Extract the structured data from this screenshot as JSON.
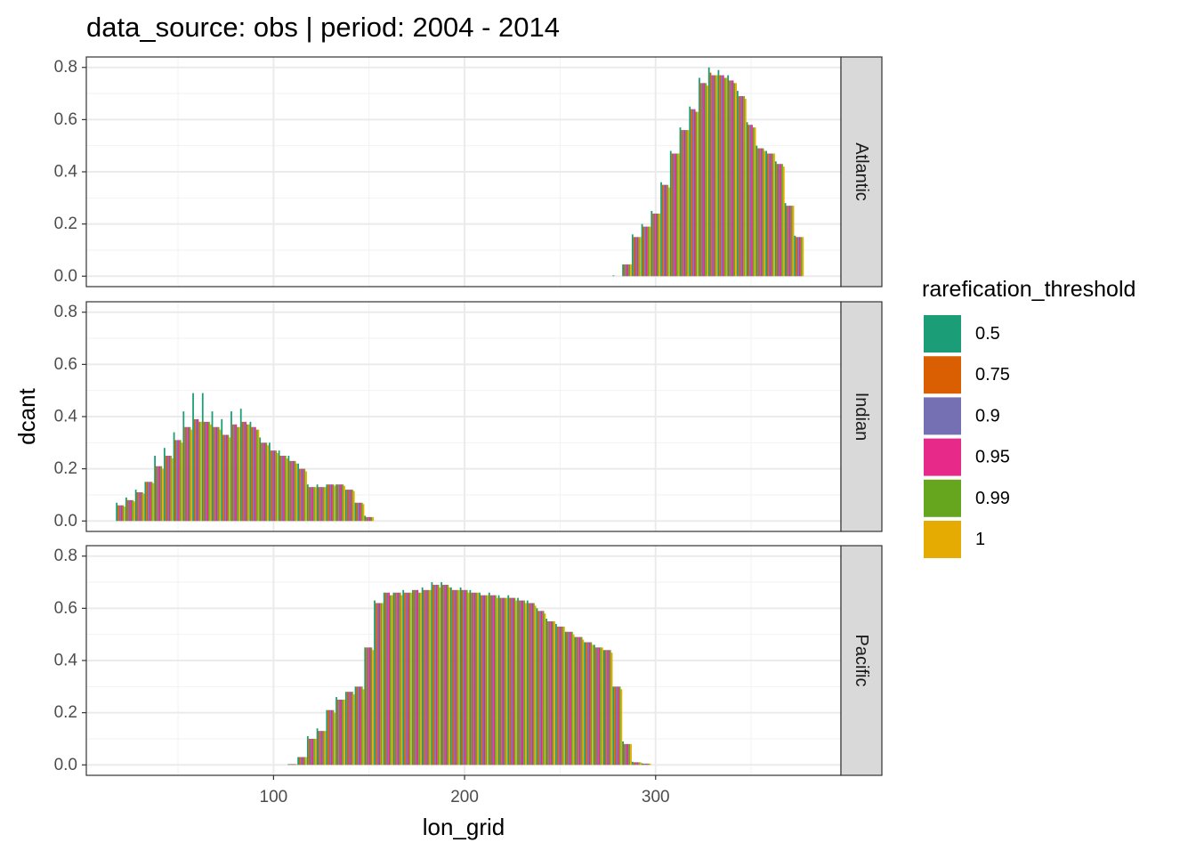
{
  "chart_data": {
    "type": "bar",
    "title": "data_source: obs | period: 2004 - 2014",
    "xlabel": "lon_grid",
    "ylabel": "dcant",
    "xlim": [
      2,
      397
    ],
    "ylim": [
      -0.04,
      0.84
    ],
    "x_ticks": [
      100,
      200,
      300
    ],
    "x_tick_labels": [
      "100",
      "200",
      "300"
    ],
    "x_minor_ticks": [
      50,
      150,
      250,
      350
    ],
    "y_ticks": [
      0.0,
      0.2,
      0.4,
      0.6,
      0.8
    ],
    "y_tick_labels": [
      "0.0",
      "0.2",
      "0.4",
      "0.6",
      "0.8"
    ],
    "grid": true,
    "legend": {
      "title": "rarefication_threshold",
      "position": "right",
      "entries": [
        {
          "label": "0.5",
          "color": "#1B9E77"
        },
        {
          "label": "0.75",
          "color": "#D95F02"
        },
        {
          "label": "0.9",
          "color": "#7570B3"
        },
        {
          "label": "0.95",
          "color": "#E7298A"
        },
        {
          "label": "0.99",
          "color": "#66A61E"
        },
        {
          "label": "1",
          "color": "#E6AB02"
        }
      ]
    },
    "bin_width": 5,
    "facets": [
      {
        "name": "Atlantic",
        "x": [
          280,
          285,
          290,
          295,
          300,
          305,
          310,
          315,
          320,
          325,
          330,
          335,
          340,
          345,
          350,
          355,
          360,
          365,
          370,
          375
        ],
        "series": [
          {
            "name": "0.5",
            "values": [
              0.003,
              0.045,
              0.16,
              0.2,
              0.25,
              0.36,
              0.48,
              0.57,
              0.65,
              0.76,
              0.8,
              0.79,
              0.77,
              0.71,
              0.59,
              0.5,
              0.48,
              0.44,
              0.28,
              0.155
            ]
          },
          {
            "name": "0.75",
            "values": [
              0.0,
              0.045,
              0.15,
              0.19,
              0.24,
              0.35,
              0.47,
              0.56,
              0.64,
              0.74,
              0.78,
              0.77,
              0.75,
              0.69,
              0.58,
              0.49,
              0.47,
              0.43,
              0.27,
              0.15
            ]
          },
          {
            "name": "0.9",
            "values": [
              0.0,
              0.045,
              0.15,
              0.19,
              0.24,
              0.35,
              0.47,
              0.56,
              0.64,
              0.74,
              0.77,
              0.77,
              0.75,
              0.69,
              0.58,
              0.49,
              0.47,
              0.43,
              0.27,
              0.15
            ]
          },
          {
            "name": "0.95",
            "values": [
              0.0,
              0.045,
              0.15,
              0.19,
              0.24,
              0.35,
              0.47,
              0.56,
              0.64,
              0.74,
              0.77,
              0.77,
              0.75,
              0.69,
              0.58,
              0.49,
              0.47,
              0.43,
              0.27,
              0.15
            ]
          },
          {
            "name": "0.99",
            "values": [
              0.0,
              0.045,
              0.15,
              0.19,
              0.24,
              0.35,
              0.47,
              0.56,
              0.63,
              0.74,
              0.77,
              0.76,
              0.74,
              0.69,
              0.57,
              0.49,
              0.47,
              0.43,
              0.27,
              0.15
            ]
          },
          {
            "name": "1",
            "values": [
              0.0,
              0.045,
              0.15,
              0.19,
              0.24,
              0.34,
              0.47,
              0.56,
              0.63,
              0.73,
              0.77,
              0.76,
              0.74,
              0.68,
              0.57,
              0.48,
              0.47,
              0.42,
              0.27,
              0.15
            ]
          }
        ]
      },
      {
        "name": "Indian",
        "x": [
          20,
          25,
          30,
          35,
          40,
          45,
          50,
          55,
          60,
          65,
          70,
          75,
          80,
          85,
          90,
          95,
          100,
          105,
          110,
          115,
          120,
          125,
          130,
          135,
          140,
          145,
          150
        ],
        "series": [
          {
            "name": "0.5",
            "values": [
              0.07,
              0.09,
              0.12,
              0.15,
              0.25,
              0.28,
              0.34,
              0.42,
              0.49,
              0.49,
              0.42,
              0.39,
              0.42,
              0.43,
              0.38,
              0.32,
              0.3,
              0.27,
              0.25,
              0.22,
              0.14,
              0.14,
              0.14,
              0.14,
              0.12,
              0.07,
              0.02
            ]
          },
          {
            "name": "0.75",
            "values": [
              0.06,
              0.08,
              0.11,
              0.15,
              0.21,
              0.25,
              0.31,
              0.36,
              0.39,
              0.38,
              0.36,
              0.33,
              0.37,
              0.38,
              0.36,
              0.3,
              0.27,
              0.25,
              0.23,
              0.2,
              0.13,
              0.13,
              0.14,
              0.14,
              0.12,
              0.07,
              0.015
            ]
          },
          {
            "name": "0.9",
            "values": [
              0.06,
              0.08,
              0.11,
              0.15,
              0.21,
              0.25,
              0.31,
              0.36,
              0.39,
              0.38,
              0.36,
              0.33,
              0.37,
              0.38,
              0.36,
              0.3,
              0.27,
              0.25,
              0.23,
              0.2,
              0.13,
              0.13,
              0.14,
              0.14,
              0.12,
              0.07,
              0.015
            ]
          },
          {
            "name": "0.95",
            "values": [
              0.06,
              0.08,
              0.11,
              0.15,
              0.21,
              0.25,
              0.31,
              0.36,
              0.39,
              0.38,
              0.36,
              0.33,
              0.37,
              0.38,
              0.36,
              0.3,
              0.27,
              0.25,
              0.23,
              0.2,
              0.13,
              0.13,
              0.14,
              0.14,
              0.12,
              0.07,
              0.015
            ]
          },
          {
            "name": "0.99",
            "values": [
              0.06,
              0.08,
              0.11,
              0.15,
              0.21,
              0.25,
              0.31,
              0.36,
              0.38,
              0.38,
              0.36,
              0.33,
              0.36,
              0.37,
              0.35,
              0.3,
              0.27,
              0.25,
              0.23,
              0.2,
              0.13,
              0.13,
              0.14,
              0.14,
              0.12,
              0.07,
              0.015
            ]
          },
          {
            "name": "1",
            "values": [
              0.055,
              0.075,
              0.105,
              0.145,
              0.2,
              0.24,
              0.3,
              0.35,
              0.38,
              0.37,
              0.35,
              0.32,
              0.36,
              0.37,
              0.35,
              0.29,
              0.26,
              0.24,
              0.22,
              0.19,
              0.13,
              0.13,
              0.135,
              0.135,
              0.115,
              0.065,
              0.015
            ]
          }
        ]
      },
      {
        "name": "Pacific",
        "x": [
          110,
          115,
          120,
          125,
          130,
          135,
          140,
          145,
          150,
          155,
          160,
          165,
          170,
          175,
          180,
          185,
          190,
          195,
          200,
          205,
          210,
          215,
          220,
          225,
          230,
          235,
          240,
          245,
          250,
          255,
          260,
          265,
          270,
          275,
          280,
          285,
          290,
          295
        ],
        "series": [
          {
            "name": "0.5",
            "values": [
              0.003,
              0.03,
              0.11,
              0.14,
              0.21,
              0.26,
              0.28,
              0.3,
              0.45,
              0.63,
              0.66,
              0.66,
              0.67,
              0.67,
              0.68,
              0.7,
              0.7,
              0.68,
              0.68,
              0.67,
              0.66,
              0.66,
              0.65,
              0.65,
              0.64,
              0.63,
              0.6,
              0.56,
              0.54,
              0.51,
              0.49,
              0.47,
              0.46,
              0.44,
              0.3,
              0.09,
              0.012,
              0.006
            ]
          },
          {
            "name": "0.75",
            "values": [
              0.003,
              0.03,
              0.1,
              0.13,
              0.21,
              0.25,
              0.28,
              0.3,
              0.45,
              0.62,
              0.66,
              0.66,
              0.66,
              0.67,
              0.67,
              0.69,
              0.69,
              0.67,
              0.67,
              0.66,
              0.65,
              0.65,
              0.64,
              0.64,
              0.63,
              0.62,
              0.59,
              0.55,
              0.53,
              0.51,
              0.49,
              0.47,
              0.45,
              0.44,
              0.3,
              0.08,
              0.01,
              0.005
            ]
          },
          {
            "name": "0.9",
            "values": [
              0.003,
              0.03,
              0.1,
              0.13,
              0.21,
              0.25,
              0.28,
              0.3,
              0.45,
              0.62,
              0.66,
              0.66,
              0.66,
              0.67,
              0.67,
              0.69,
              0.69,
              0.67,
              0.67,
              0.66,
              0.65,
              0.65,
              0.64,
              0.64,
              0.63,
              0.62,
              0.59,
              0.55,
              0.53,
              0.51,
              0.49,
              0.47,
              0.45,
              0.44,
              0.3,
              0.08,
              0.01,
              0.005
            ]
          },
          {
            "name": "0.95",
            "values": [
              0.003,
              0.03,
              0.1,
              0.13,
              0.21,
              0.25,
              0.28,
              0.3,
              0.45,
              0.62,
              0.66,
              0.66,
              0.66,
              0.67,
              0.67,
              0.69,
              0.69,
              0.67,
              0.67,
              0.66,
              0.65,
              0.65,
              0.64,
              0.64,
              0.63,
              0.62,
              0.59,
              0.55,
              0.53,
              0.51,
              0.49,
              0.47,
              0.45,
              0.44,
              0.3,
              0.08,
              0.01,
              0.005
            ]
          },
          {
            "name": "0.99",
            "values": [
              0.003,
              0.03,
              0.1,
              0.13,
              0.21,
              0.25,
              0.28,
              0.3,
              0.45,
              0.62,
              0.65,
              0.66,
              0.66,
              0.66,
              0.67,
              0.69,
              0.69,
              0.67,
              0.67,
              0.66,
              0.65,
              0.65,
              0.64,
              0.64,
              0.63,
              0.62,
              0.59,
              0.55,
              0.53,
              0.51,
              0.49,
              0.47,
              0.45,
              0.44,
              0.3,
              0.08,
              0.01,
              0.005
            ]
          },
          {
            "name": "1",
            "values": [
              0.003,
              0.03,
              0.1,
              0.13,
              0.2,
              0.25,
              0.27,
              0.29,
              0.44,
              0.62,
              0.65,
              0.65,
              0.66,
              0.66,
              0.67,
              0.68,
              0.68,
              0.67,
              0.66,
              0.66,
              0.65,
              0.64,
              0.64,
              0.63,
              0.62,
              0.61,
              0.58,
              0.55,
              0.53,
              0.5,
              0.48,
              0.46,
              0.45,
              0.43,
              0.29,
              0.08,
              0.01,
              0.005
            ]
          }
        ]
      }
    ]
  }
}
